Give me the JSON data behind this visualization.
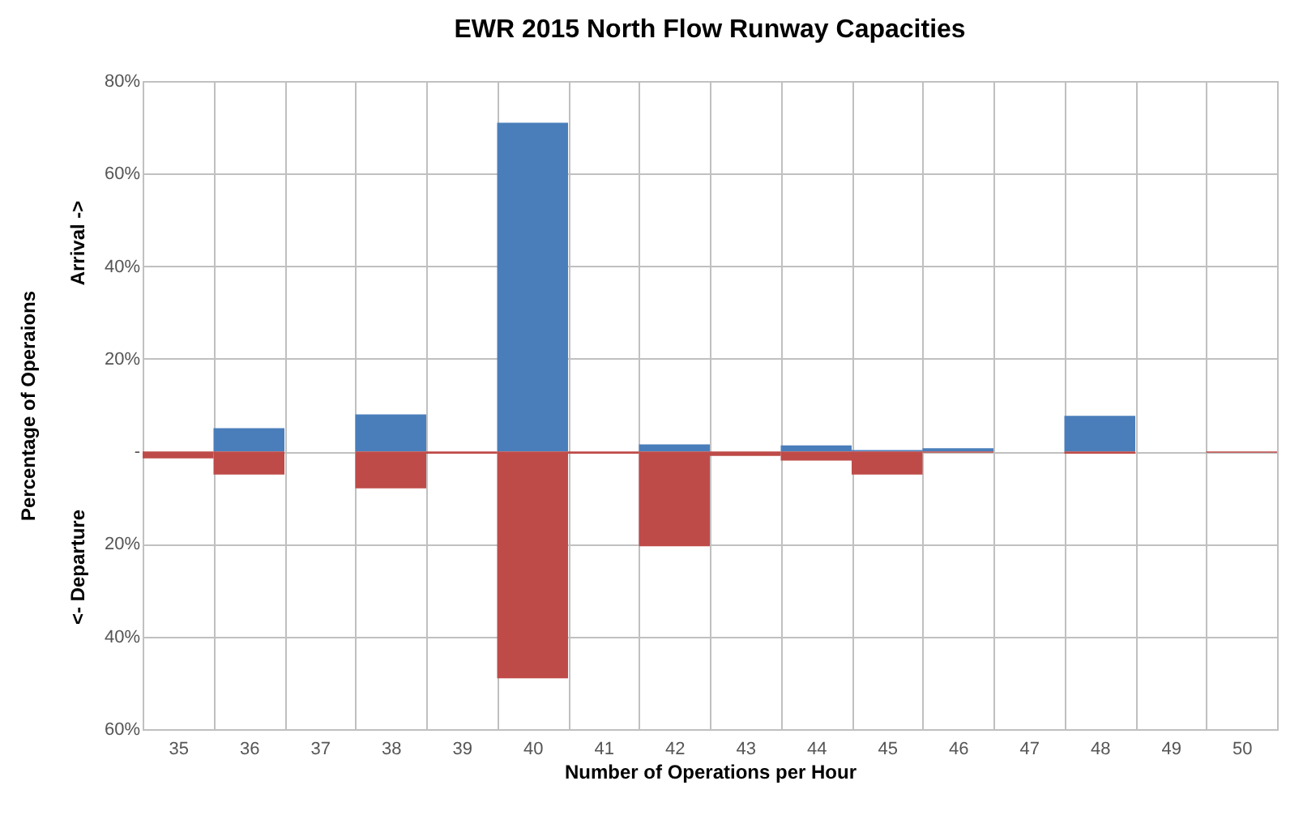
{
  "chart_data": {
    "type": "bar",
    "title": "EWR 2015 North Flow Runway Capacities",
    "xlabel": "Number of Operations per Hour",
    "ylabel": "Percentage of Operaions",
    "annotations": [
      "Arrival ->",
      "<- Departure"
    ],
    "categories": [
      "35",
      "36",
      "37",
      "38",
      "39",
      "40",
      "41",
      "42",
      "43",
      "44",
      "45",
      "46",
      "47",
      "48",
      "49",
      "50"
    ],
    "series": [
      {
        "color": "#4a7ebb",
        "values": [
          0,
          5,
          0,
          8,
          0,
          71,
          0,
          1.5,
          0,
          1.3,
          0.3,
          0.7,
          0,
          7.7,
          0,
          0
        ]
      },
      {
        "color": "#be4b48",
        "values": [
          -1.5,
          -5,
          0,
          -8,
          -0.5,
          -49,
          -0.5,
          -20.5,
          -1,
          -2,
          -5,
          -0.3,
          0,
          -0.5,
          0,
          -0.3
        ]
      }
    ],
    "ylim": [
      -60,
      80
    ],
    "yticks": [
      {
        "value": -60,
        "label": "60%"
      },
      {
        "value": -40,
        "label": "40%"
      },
      {
        "value": -20,
        "label": "20%"
      },
      {
        "value": 0,
        "label": "-"
      },
      {
        "value": 20,
        "label": "20%"
      },
      {
        "value": 40,
        "label": "40%"
      },
      {
        "value": 60,
        "label": "60%"
      },
      {
        "value": 80,
        "label": "80%"
      }
    ],
    "grid": true
  }
}
